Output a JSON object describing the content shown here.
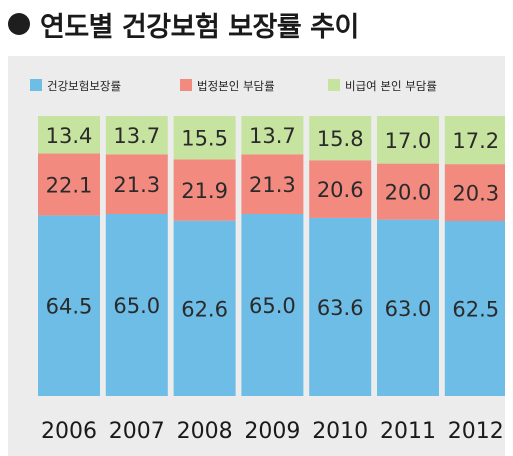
{
  "page_title": "연도별 건강보험 보장률 추이",
  "chart_data": {
    "type": "bar",
    "stacked": true,
    "title": "연도별 건강보험 보장률 추이",
    "categories": [
      "2006",
      "2007",
      "2008",
      "2009",
      "2010",
      "2011",
      "2012"
    ],
    "series": [
      {
        "name": "건강보험보장률",
        "color": "#6ebde6",
        "values": [
          64.5,
          65.0,
          62.6,
          65.0,
          63.6,
          63.0,
          62.5
        ]
      },
      {
        "name": "법정본인 부담률",
        "color": "#f28a80",
        "values": [
          22.1,
          21.3,
          21.9,
          21.3,
          20.6,
          20.0,
          20.3
        ]
      },
      {
        "name": "비급여 본인 부담률",
        "color": "#c7e3a0",
        "values": [
          13.4,
          13.7,
          15.5,
          13.7,
          15.8,
          17.0,
          17.2
        ]
      }
    ],
    "ylim": [
      0,
      100
    ],
    "grid": false,
    "legend_position": "top"
  }
}
